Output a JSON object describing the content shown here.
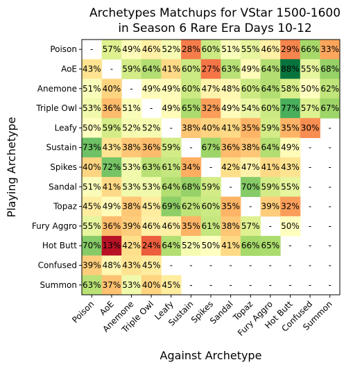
{
  "chart_data": {
    "type": "heatmap",
    "title": "Archetypes Matchups for VStar 1500-1600\nin Season 6 Rare Era Days 10-12",
    "xlabel": "Against Archetype",
    "ylabel": "Playing Archetype",
    "rows": [
      "Poison",
      "AoE",
      "Anemone",
      "Triple Owl",
      "Leafy",
      "Sustain",
      "Spikes",
      "Sandal",
      "Topaz",
      "Fury Aggro",
      "Hot Butt",
      "Confused",
      "Summon"
    ],
    "cols": [
      "Poison",
      "AoE",
      "Anemone",
      "Triple Owl",
      "Leafy",
      "Sustain",
      "Spikes",
      "Sandal",
      "Topaz",
      "Fury Aggro",
      "Hot Butt",
      "Confused",
      "Summon"
    ],
    "cells": [
      [
        "-",
        "57%",
        "49%",
        "46%",
        "52%",
        "28%",
        "60%",
        "51%",
        "55%",
        "46%",
        "29%",
        "66%",
        "33%"
      ],
      [
        "43%",
        "-",
        "59%",
        "64%",
        "41%",
        "60%",
        "27%",
        "63%",
        "49%",
        "64%",
        "88%",
        "55%",
        "68%"
      ],
      [
        "51%",
        "40%",
        "-",
        "49%",
        "49%",
        "60%",
        "47%",
        "48%",
        "60%",
        "64%",
        "58%",
        "50%",
        "62%"
      ],
      [
        "53%",
        "36%",
        "51%",
        "-",
        "49%",
        "65%",
        "32%",
        "49%",
        "54%",
        "60%",
        "77%",
        "57%",
        "67%"
      ],
      [
        "50%",
        "59%",
        "52%",
        "52%",
        "-",
        "38%",
        "40%",
        "41%",
        "35%",
        "59%",
        "35%",
        "30%",
        "-"
      ],
      [
        "73%",
        "43%",
        "38%",
        "36%",
        "59%",
        "-",
        "67%",
        "36%",
        "38%",
        "64%",
        "49%",
        "-",
        "-"
      ],
      [
        "40%",
        "72%",
        "53%",
        "63%",
        "61%",
        "34%",
        "-",
        "42%",
        "47%",
        "41%",
        "43%",
        "-",
        "-"
      ],
      [
        "51%",
        "41%",
        "53%",
        "53%",
        "64%",
        "68%",
        "59%",
        "-",
        "70%",
        "59%",
        "55%",
        "-",
        "-"
      ],
      [
        "45%",
        "49%",
        "38%",
        "45%",
        "69%",
        "62%",
        "60%",
        "35%",
        "-",
        "39%",
        "32%",
        "-",
        "-"
      ],
      [
        "55%",
        "36%",
        "39%",
        "46%",
        "46%",
        "35%",
        "61%",
        "38%",
        "57%",
        "-",
        "50%",
        "-",
        "-"
      ],
      [
        "70%",
        "13%",
        "42%",
        "24%",
        "64%",
        "52%",
        "50%",
        "41%",
        "66%",
        "65%",
        "-",
        "-",
        "-"
      ],
      [
        "39%",
        "48%",
        "43%",
        "45%",
        "-",
        "-",
        "-",
        "-",
        "-",
        "-",
        "-",
        "-",
        "-"
      ],
      [
        "63%",
        "37%",
        "53%",
        "40%",
        "45%",
        "-",
        "-",
        "-",
        "-",
        "-",
        "-",
        "-",
        "-"
      ]
    ]
  }
}
